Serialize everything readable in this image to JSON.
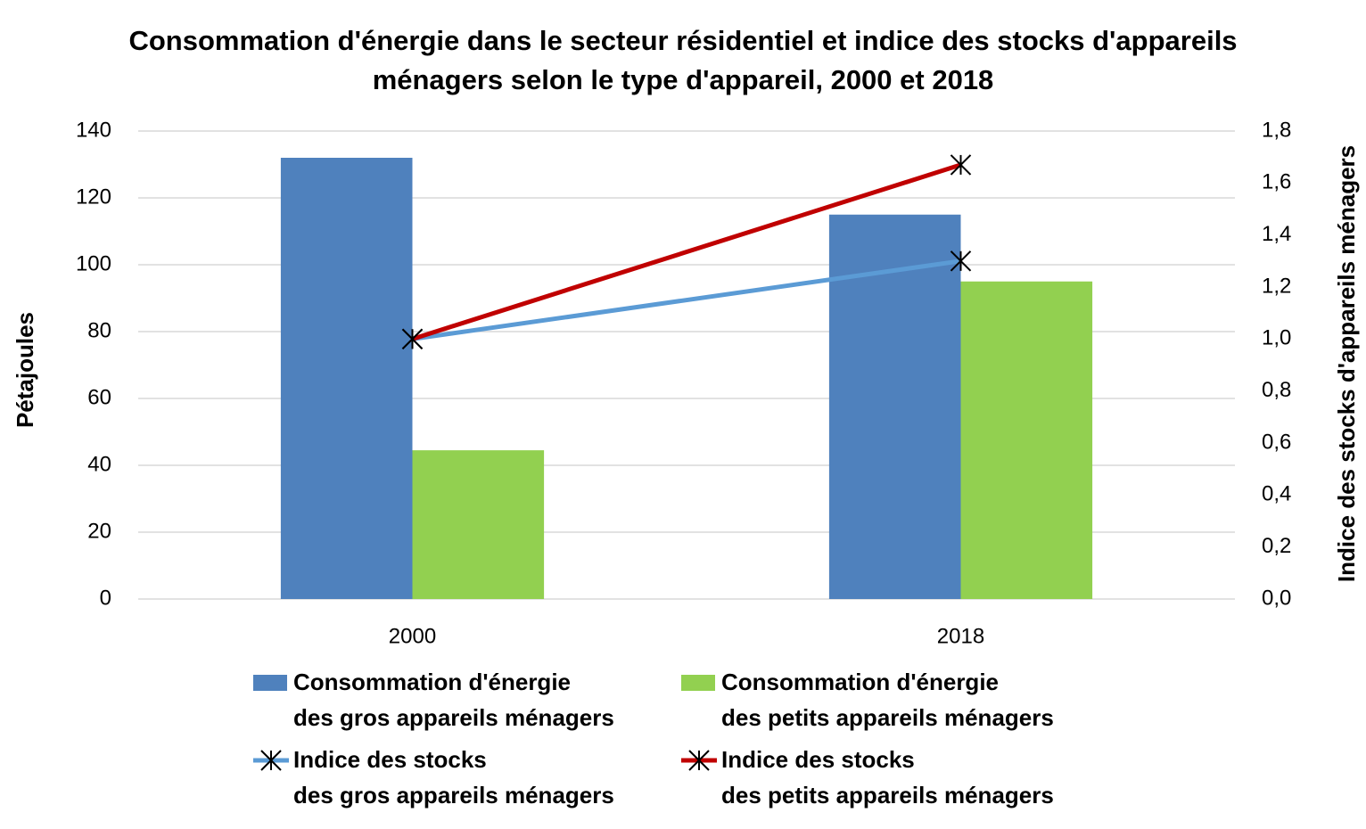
{
  "chart_data": {
    "type": "bar",
    "title": "Consommation d'énergie dans le secteur résidentiel et indice des stocks d'appareils ménagers selon le type d'appareil, 2000 et 2018",
    "y_label": "Pétajoules",
    "y2_label": "Indice des stocks d'appareils ménagers",
    "categories": [
      "2000",
      "2018"
    ],
    "series": [
      {
        "name": "Consommation d'énergie\ndes gros appareils ménagers",
        "type": "bar",
        "color": "#4f81bd",
        "values": [
          132,
          115
        ]
      },
      {
        "name": "Consommation d'énergie\ndes petits appareils ménagers",
        "type": "bar",
        "color": "#92d050",
        "values": [
          44.5,
          95
        ]
      },
      {
        "name": "Indice des stocks\ndes gros appareils ménagers",
        "type": "line",
        "axis": "y2",
        "color": "#5b9bd5",
        "values": [
          1.0,
          1.3
        ]
      },
      {
        "name": "Indice des stocks\ndes petits appareils ménagers",
        "type": "line",
        "axis": "y2",
        "color": "#c00000",
        "values": [
          1.0,
          1.67
        ]
      }
    ],
    "ylim": [
      0,
      140
    ],
    "yticks": [
      0,
      20,
      40,
      60,
      80,
      100,
      120,
      140
    ],
    "y2lim": [
      0,
      1.8
    ],
    "y2ticks": [
      {
        "value": 0,
        "label": "0,0"
      },
      {
        "value": 0.2,
        "label": "0,2"
      },
      {
        "value": 0.4,
        "label": "0,4"
      },
      {
        "value": 0.6,
        "label": "0,6"
      },
      {
        "value": 0.8,
        "label": "0,8"
      },
      {
        "value": 1,
        "label": "1,0"
      },
      {
        "value": 1.2,
        "label": "1,2"
      },
      {
        "value": 1.4,
        "label": "1,4"
      },
      {
        "value": 1.6,
        "label": "1,6"
      },
      {
        "value": 1.8,
        "label": "1,8"
      }
    ],
    "grid": true,
    "legend": "bottom"
  }
}
